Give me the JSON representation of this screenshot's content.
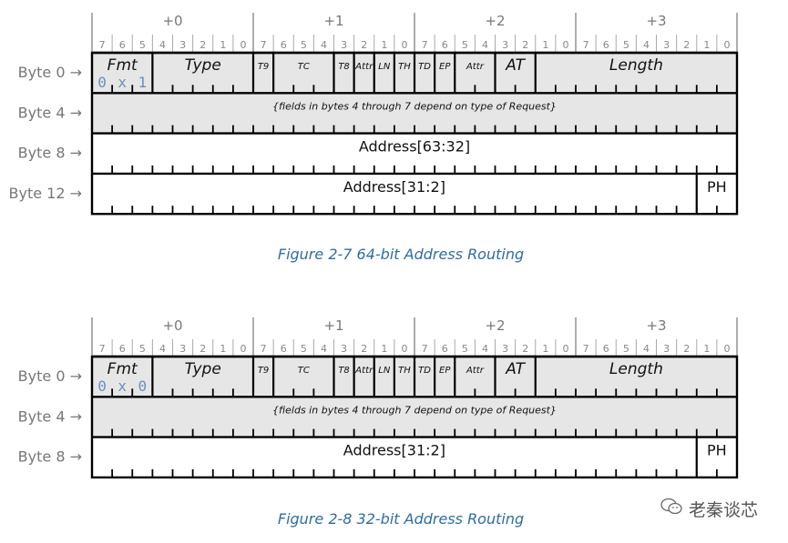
{
  "byte_offsets": [
    "+0",
    "+1",
    "+2",
    "+3"
  ],
  "bit_numbers": [
    "7",
    "6",
    "5",
    "4",
    "3",
    "2",
    "1",
    "0"
  ],
  "figures": [
    {
      "caption": "Figure  2-7  64-bit Address Routing",
      "rows": [
        {
          "label": "Byte 0 →",
          "shaded": true,
          "fields": [
            {
              "text": "Fmt",
              "start": 0,
              "width": 3,
              "style": "big",
              "value_chars": [
                "0",
                "x",
                "1"
              ]
            },
            {
              "text": "Type",
              "start": 3,
              "width": 5,
              "style": "big"
            },
            {
              "text": "T9",
              "start": 8,
              "width": 1,
              "style": "small"
            },
            {
              "text": "TC",
              "start": 9,
              "width": 3,
              "style": "small"
            },
            {
              "text": "T8",
              "start": 12,
              "width": 1,
              "style": "small"
            },
            {
              "text": "Attr",
              "start": 13,
              "width": 1,
              "style": "small"
            },
            {
              "text": "LN",
              "start": 14,
              "width": 1,
              "style": "small"
            },
            {
              "text": "TH",
              "start": 15,
              "width": 1,
              "style": "small"
            },
            {
              "text": "TD",
              "start": 16,
              "width": 1,
              "style": "small"
            },
            {
              "text": "EP",
              "start": 17,
              "width": 1,
              "style": "small"
            },
            {
              "text": "Attr",
              "start": 18,
              "width": 2,
              "style": "small"
            },
            {
              "text": "AT",
              "start": 20,
              "width": 2,
              "style": "big"
            },
            {
              "text": "Length",
              "start": 22,
              "width": 10,
              "style": "big"
            }
          ]
        },
        {
          "label": "Byte 4 →",
          "shaded": true,
          "fields": [
            {
              "text": "{fields in bytes 4 through 7 depend on type of Request}",
              "start": 0,
              "width": 32,
              "style": "note"
            }
          ]
        },
        {
          "label": "Byte 8 →",
          "shaded": false,
          "fields": [
            {
              "text": "Address[63:32]",
              "start": 0,
              "width": 32,
              "style": "plain"
            }
          ]
        },
        {
          "label": "Byte 12 →",
          "shaded": false,
          "fields": [
            {
              "text": "Address[31:2]",
              "start": 0,
              "width": 30,
              "style": "plain"
            },
            {
              "text": "PH",
              "start": 30,
              "width": 2,
              "style": "plain"
            }
          ]
        }
      ]
    },
    {
      "caption": "Figure  2-8  32-bit Address Routing",
      "rows": [
        {
          "label": "Byte 0 →",
          "shaded": true,
          "fields": [
            {
              "text": "Fmt",
              "start": 0,
              "width": 3,
              "style": "big",
              "value_chars": [
                "0",
                "x",
                "0"
              ]
            },
            {
              "text": "Type",
              "start": 3,
              "width": 5,
              "style": "big"
            },
            {
              "text": "T9",
              "start": 8,
              "width": 1,
              "style": "small"
            },
            {
              "text": "TC",
              "start": 9,
              "width": 3,
              "style": "small"
            },
            {
              "text": "T8",
              "start": 12,
              "width": 1,
              "style": "small"
            },
            {
              "text": "Attr",
              "start": 13,
              "width": 1,
              "style": "small"
            },
            {
              "text": "LN",
              "start": 14,
              "width": 1,
              "style": "small"
            },
            {
              "text": "TH",
              "start": 15,
              "width": 1,
              "style": "small"
            },
            {
              "text": "TD",
              "start": 16,
              "width": 1,
              "style": "small"
            },
            {
              "text": "EP",
              "start": 17,
              "width": 1,
              "style": "small"
            },
            {
              "text": "Attr",
              "start": 18,
              "width": 2,
              "style": "small"
            },
            {
              "text": "AT",
              "start": 20,
              "width": 2,
              "style": "big"
            },
            {
              "text": "Length",
              "start": 22,
              "width": 10,
              "style": "big"
            }
          ]
        },
        {
          "label": "Byte 4 →",
          "shaded": true,
          "fields": [
            {
              "text": "{fields in bytes 4 through 7 depend on type of Request}",
              "start": 0,
              "width": 32,
              "style": "note"
            }
          ]
        },
        {
          "label": "Byte 8 →",
          "shaded": false,
          "fields": [
            {
              "text": "Address[31:2]",
              "start": 0,
              "width": 30,
              "style": "plain"
            },
            {
              "text": "PH",
              "start": 30,
              "width": 2,
              "style": "plain"
            }
          ]
        }
      ]
    }
  ],
  "watermark": {
    "text": "老秦谈芯",
    "icon": "wechat-icon"
  },
  "colors": {
    "shade": "#e6e6e6",
    "caption": "#2e6ca4",
    "fmt_value": "#6a8fc0",
    "label": "#777777"
  }
}
